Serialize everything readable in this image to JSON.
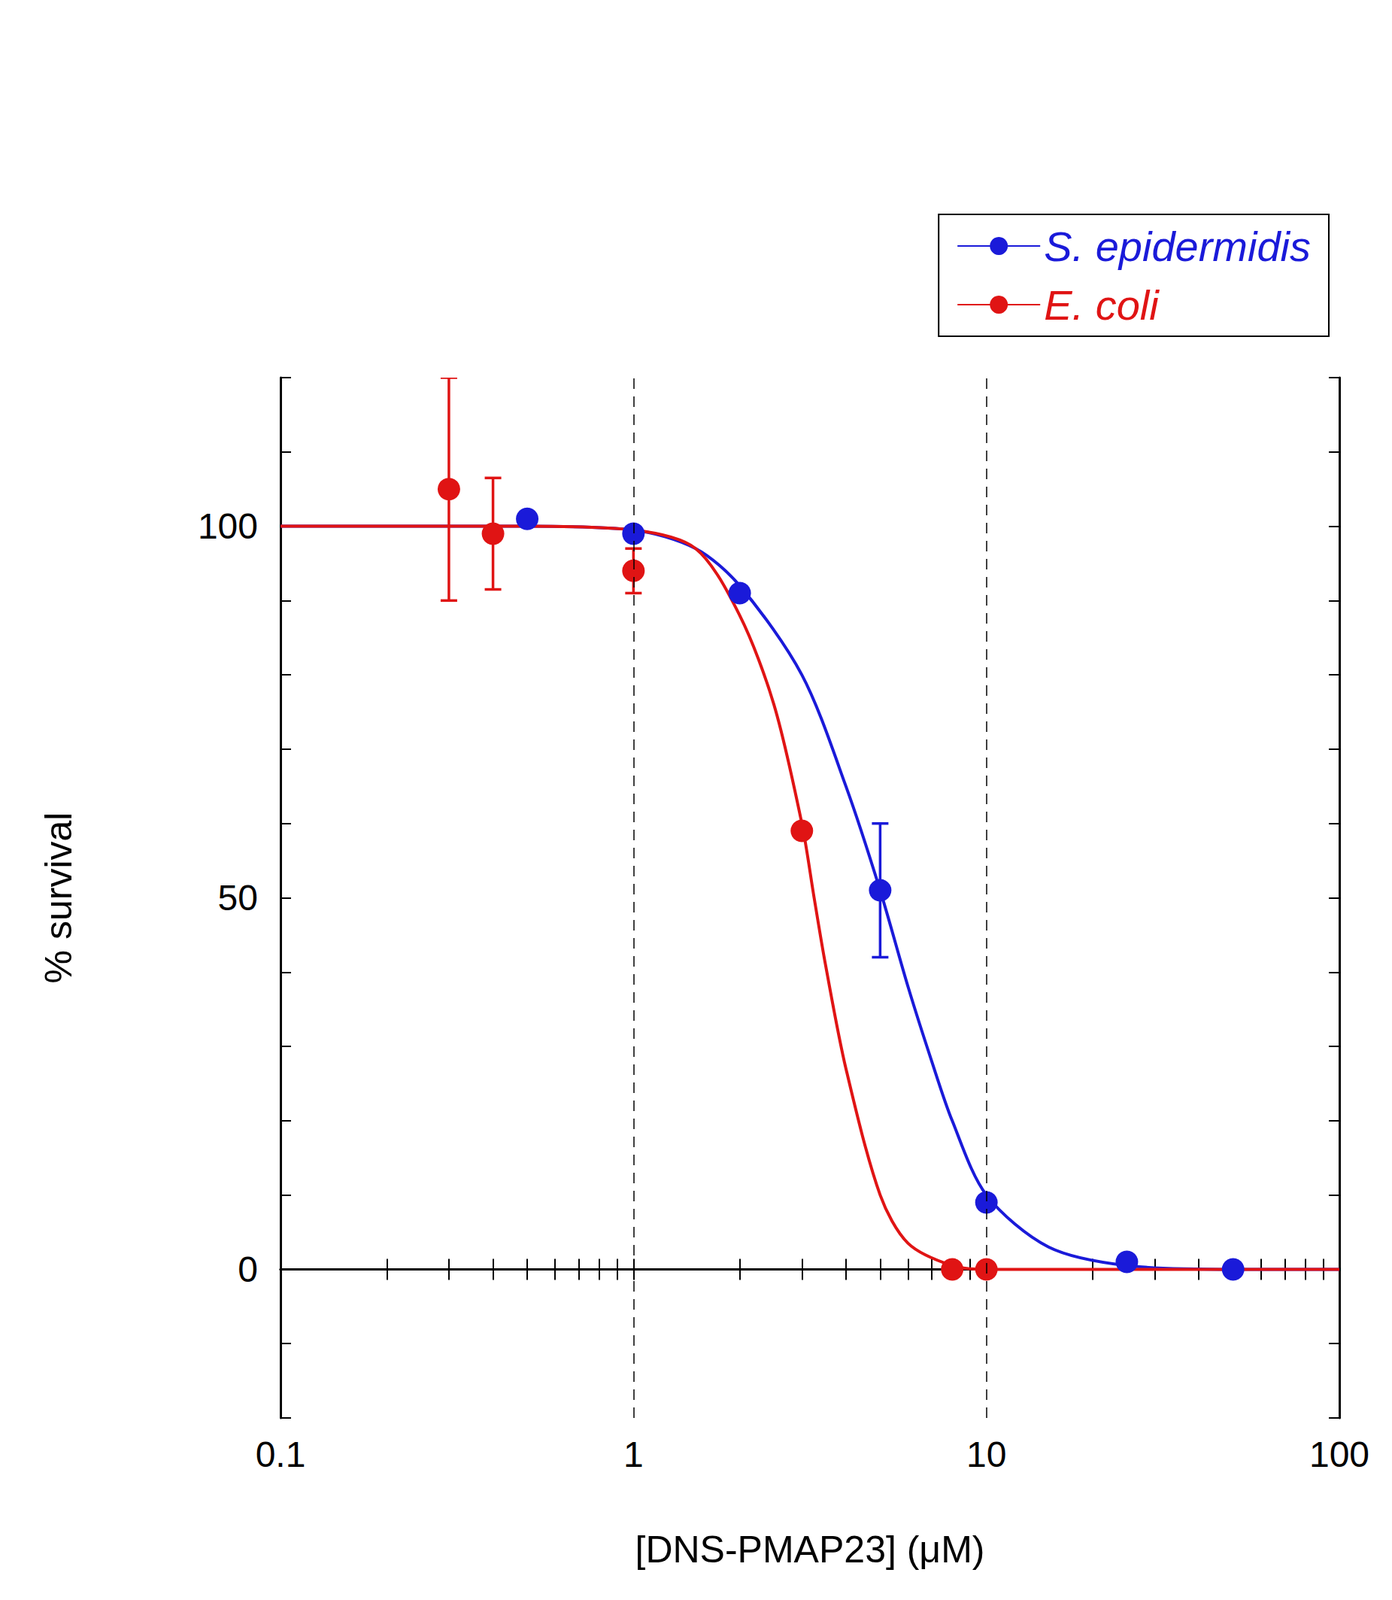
{
  "chart_data": {
    "type": "scatter",
    "xlabel": "[DNS-PMAP23] (μM)",
    "ylabel": "% survival",
    "log": "x",
    "xlim": [
      0.1,
      100
    ],
    "xticks": [
      0.1,
      1,
      10,
      100
    ],
    "ylim": [
      -20,
      120
    ],
    "yticks": [
      0,
      50,
      100
    ],
    "grid": false,
    "legend": "top-right",
    "reference_lines": [
      1,
      10
    ],
    "series": [
      {
        "name": "S. epidermidis",
        "color": "#1a1ad9",
        "marker": "circle",
        "x": [
          0.5,
          1,
          2,
          5,
          10,
          25,
          50
        ],
        "values": [
          101,
          99,
          91,
          51,
          9,
          1,
          0
        ],
        "errors": [
          null,
          null,
          null,
          9,
          null,
          null,
          null
        ],
        "fit_x": [
          0.1,
          0.5,
          1,
          1.5,
          2,
          3,
          4,
          5,
          6,
          7,
          8,
          10,
          15,
          25,
          50,
          100
        ],
        "fit_values": [
          100,
          100,
          99.5,
          97,
          92,
          80,
          65,
          51,
          38,
          28,
          20,
          10,
          3,
          0.5,
          0,
          0
        ]
      },
      {
        "name": "E. coli",
        "color": "#e01414",
        "marker": "circle",
        "x": [
          0.3,
          0.4,
          1,
          3,
          8,
          10
        ],
        "values": [
          105,
          99,
          94,
          59,
          0,
          0
        ],
        "errors": [
          15,
          7.5,
          3,
          null,
          null,
          null
        ],
        "fit_x": [
          0.1,
          0.5,
          1,
          1.5,
          2,
          2.5,
          3,
          3.25,
          3.5,
          4,
          5,
          6,
          8,
          10,
          100
        ],
        "fit_values": [
          100,
          100,
          99.5,
          97,
          88,
          76,
          60,
          50,
          41,
          27,
          10,
          3.5,
          0.5,
          0,
          0
        ]
      }
    ]
  }
}
